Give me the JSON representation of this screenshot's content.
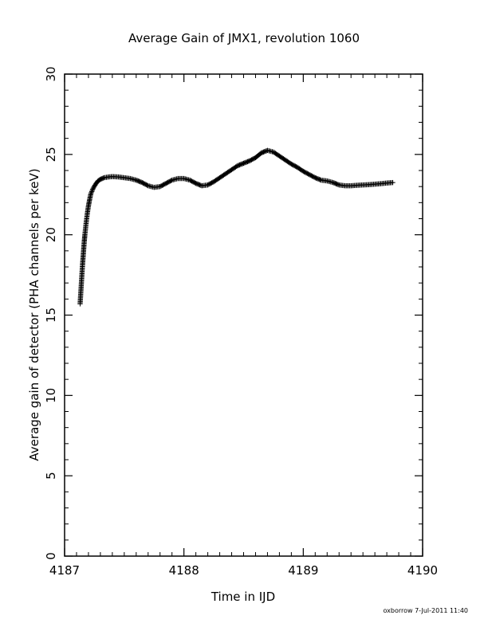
{
  "chart_data": {
    "type": "scatter",
    "title": "Average Gain of JMX1, revolution 1060",
    "xlabel": "Time in IJD",
    "ylabel": "Average gain of detector (PHA channels per keV)",
    "xlim": [
      4187,
      4190
    ],
    "ylim": [
      0,
      30
    ],
    "xticks": [
      4187,
      4188,
      4189,
      4190
    ],
    "yticks": [
      0,
      5,
      10,
      15,
      20,
      25,
      30
    ],
    "x_minor_step": 0.1,
    "y_minor_step": 1,
    "grid": false,
    "legend": "none",
    "marker": "plus",
    "color": "#000000",
    "series": [
      {
        "points": [
          [
            4187.13,
            15.7
          ],
          [
            4187.135,
            16.3
          ],
          [
            4187.14,
            16.9
          ],
          [
            4187.145,
            17.5
          ],
          [
            4187.15,
            18.1
          ],
          [
            4187.155,
            18.6
          ],
          [
            4187.16,
            19.1
          ],
          [
            4187.165,
            19.6
          ],
          [
            4187.17,
            20.0
          ],
          [
            4187.18,
            20.7
          ],
          [
            4187.19,
            21.3
          ],
          [
            4187.2,
            21.8
          ],
          [
            4187.21,
            22.2
          ],
          [
            4187.22,
            22.55
          ],
          [
            4187.24,
            22.9
          ],
          [
            4187.26,
            23.15
          ],
          [
            4187.28,
            23.35
          ],
          [
            4187.3,
            23.45
          ],
          [
            4187.33,
            23.55
          ],
          [
            4187.37,
            23.6
          ],
          [
            4187.4,
            23.62
          ],
          [
            4187.45,
            23.6
          ],
          [
            4187.5,
            23.55
          ],
          [
            4187.55,
            23.5
          ],
          [
            4187.6,
            23.4
          ],
          [
            4187.65,
            23.25
          ],
          [
            4187.7,
            23.05
          ],
          [
            4187.75,
            22.95
          ],
          [
            4187.8,
            23.0
          ],
          [
            4187.85,
            23.2
          ],
          [
            4187.9,
            23.4
          ],
          [
            4187.95,
            23.5
          ],
          [
            4188.0,
            23.5
          ],
          [
            4188.05,
            23.4
          ],
          [
            4188.1,
            23.2
          ],
          [
            4188.15,
            23.05
          ],
          [
            4188.2,
            23.1
          ],
          [
            4188.25,
            23.3
          ],
          [
            4188.3,
            23.55
          ],
          [
            4188.35,
            23.8
          ],
          [
            4188.4,
            24.05
          ],
          [
            4188.45,
            24.3
          ],
          [
            4188.5,
            24.45
          ],
          [
            4188.55,
            24.6
          ],
          [
            4188.6,
            24.8
          ],
          [
            4188.65,
            25.1
          ],
          [
            4188.7,
            25.25
          ],
          [
            4188.75,
            25.15
          ],
          [
            4188.8,
            24.9
          ],
          [
            4188.85,
            24.65
          ],
          [
            4188.9,
            24.4
          ],
          [
            4188.95,
            24.2
          ],
          [
            4189.0,
            23.95
          ],
          [
            4189.05,
            23.75
          ],
          [
            4189.1,
            23.55
          ],
          [
            4189.15,
            23.4
          ],
          [
            4189.2,
            23.35
          ],
          [
            4189.25,
            23.25
          ],
          [
            4189.3,
            23.1
          ],
          [
            4189.35,
            23.05
          ],
          [
            4189.4,
            23.05
          ],
          [
            4189.45,
            23.08
          ],
          [
            4189.5,
            23.1
          ],
          [
            4189.55,
            23.12
          ],
          [
            4189.6,
            23.15
          ],
          [
            4189.65,
            23.18
          ],
          [
            4189.7,
            23.22
          ],
          [
            4189.75,
            23.25
          ]
        ]
      }
    ]
  },
  "footer": {
    "text": "oxborrow  7-Jul-2011 11:40"
  }
}
